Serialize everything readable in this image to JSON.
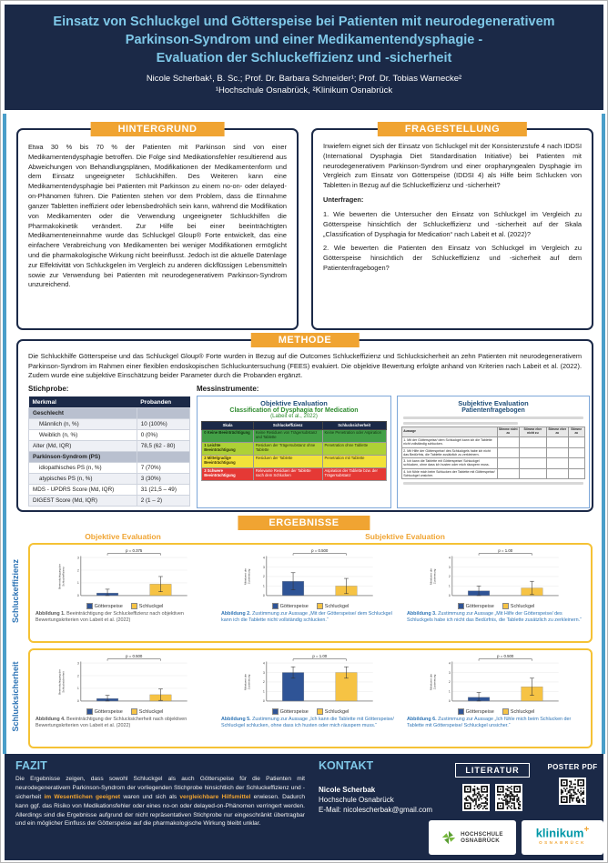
{
  "accent": {
    "navy": "#1b2947",
    "orange": "#f0a432",
    "yellow_border": "#f5c235",
    "light_blue": "#7fc8e8",
    "teal_strip": "#4a9ec9",
    "goetterspeise_blue": "#2f5496",
    "schluckgel_yellow": "#f6c344"
  },
  "header": {
    "title_lines": [
      "Einsatz von Schluckgel und Götterspeise bei Patienten mit neurodegenerativem",
      "Parkinson-Syndrom und einer Medikamentendysphagie -",
      "Evaluation der Schluckeffizienz und -sicherheit"
    ],
    "authors": "Nicole Scherbak¹, B. Sc.; Prof. Dr. Barbara Schneider¹; Prof. Dr. Tobias Warnecke²",
    "affiliations": "¹Hochschule Osnabrück, ²Klinikum Osnabrück"
  },
  "hintergrund": {
    "label": "HINTERGRUND",
    "text": "Etwa 30 % bis 70 % der Patienten mit Parkinson sind von einer Medikamentendysphagie betroffen. Die Folge sind Medikationsfehler resultierend aus Abweichungen von Behandlungsplänen, Modifikationen der Medikamentenform und dem Einsatz ungeeigneter Schluckhilfen. Des Weiteren kann eine Medikamentendysphagie bei Patienten mit Parkinson zu einem no-on- oder delayed-on-Phänomen führen. Die Patienten stehen vor dem Problem, dass die Einnahme ganzer Tabletten ineffizient oder lebensbedrohlich sein kann, während die Modifikation von Medikamenten oder die Verwendung ungeeigneter Schluckhilfen die Pharmakokinetik verändert. Zur Hilfe bei einer beeinträchtigten Medikamenteneinnahme wurde das Schluckgel Gloup® Forte entwickelt, das eine einfachere Verabreichung von Medikamenten bei weniger Modifikationen ermöglicht und die pharmakologische Wirkung nicht beeinflusst. Jedoch ist die aktuelle Datenlage zur Effektivität von Schluckgelen im Vergleich zu anderen dickflüssigen Lebensmitteln sowie zur Verwendung bei Patienten mit neurodegenerativem Parkinson-Syndrom unzureichend."
  },
  "fragestellung": {
    "label": "FRAGESTELLUNG",
    "intro": "Inwiefern eignet sich der Einsatz von Schluckgel mit der Konsistenzstufe 4 nach IDDSI (International Dysphagia Diet Standardisation Initiative) bei Patienten mit neurodegenerativem Parkinson-Syndrom und einer oropharyngealen Dysphagie im Vergleich zum Einsatz von Götterspeise (IDDSI 4) als Hilfe beim Schlucken von Tabletten in Bezug auf die Schluckeffizienz und -sicherheit?",
    "unterfragen_label": "Unterfragen:",
    "frage1": "1. Wie bewerten die Untersucher den Einsatz von Schluckgel im Vergleich zu Götterspeise hinsichtlich der Schluckeffizienz und -sicherheit auf der Skala „Classification of Dysphagia for Medication“ nach Labeit et al. (2022)?",
    "frage2": "2. Wie bewerten die Patienten den Einsatz von Schluckgel im Vergleich zu Götterspeise hinsichtlich der Schluckeffizienz und -sicherheit auf dem Patientenfragebogen?"
  },
  "methode": {
    "label": "METHODE",
    "text": "Die Schluckhilfe Götterspeise und das Schluckgel Gloup® Forte wurden in Bezug auf die Outcomes Schluckeffizienz und Schlucksicherheit an zehn Patienten mit neurodegenerativem Parkinson-Syndrom im Rahmen einer flexiblen endoskopischen Schluckuntersuchung (FEES) evaluiert. Die objektive Bewertung erfolgte anhand von Kriterien nach Labeit et al. (2022). Zudem wurde eine subjektive Einschätzung beider Parameter durch die Probanden ergänzt.",
    "stichprobe_label": "Stichprobe:",
    "messinstrumente_label": "Messinstrumente:",
    "stichprobe_table": {
      "headers": [
        "Merkmal",
        "Probanden"
      ],
      "rows": [
        {
          "merkmal": "Geschlecht",
          "probanden": "",
          "type": "group"
        },
        {
          "merkmal": "Männlich (n, %)",
          "probanden": "10 (100%)",
          "type": "indent"
        },
        {
          "merkmal": "Weiblich (n, %)",
          "probanden": "0 (0%)",
          "type": "indent"
        },
        {
          "merkmal": "Alter (Md, IQR)",
          "probanden": "78,5 (62 - 80)",
          "type": "normal"
        },
        {
          "merkmal": "Parkinson-Syndrom (PS)",
          "probanden": "",
          "type": "group"
        },
        {
          "merkmal": "idiopathisches PS (n, %)",
          "probanden": "7 (70%)",
          "type": "indent"
        },
        {
          "merkmal": "atypisches PS (n, %)",
          "probanden": "3 (30%)",
          "type": "indent"
        },
        {
          "merkmal": "MDS - UPDRS Score (Md, IQR)",
          "probanden": "31 (21,5 – 49)",
          "type": "normal"
        },
        {
          "merkmal": "DIGEST Score (Md, IQR)",
          "probanden": "2 (1 – 2)",
          "type": "normal"
        }
      ]
    },
    "objektive_panel": {
      "title": "Objektive Evaluation",
      "subtitle": "Classification of Dysphagia for Medication",
      "source": "(Labeit et al., 2022)",
      "table": {
        "headers": [
          "Skala",
          "Schluckeffizienz",
          "Schlucksicherheit"
        ],
        "rows": [
          {
            "grade": "0",
            "label": "Keine Beeinträchtigung",
            "eff": "Keine Residuen von Trägersubstanz und Tablette",
            "saf": "Keine Penetration oder Aspiration",
            "color": "#43a047",
            "text_color": "#10310f"
          },
          {
            "grade": "1",
            "label": "Leichte Beeinträchtigung",
            "eff": "Residuen der Trägersubstanz ohne Tablette",
            "saf": "Penetration ohne Tablette",
            "color": "#aed136",
            "text_color": "#2a3208"
          },
          {
            "grade": "2",
            "label": "Mittelgradige Beeinträchtigung",
            "eff": "Residuen der Tablette",
            "saf": "Penetration mit Tablette",
            "color": "#f2e23a",
            "text_color": "#3a3406"
          },
          {
            "grade": "3",
            "label": "Schwere Beeinträchtigung",
            "eff": "Relevante Residuen der Tablette nach dem Schlucken",
            "saf": "Aspiration der Tablette bzw. der Trägersubstanz",
            "color": "#e53935",
            "text_color": "#ffffff"
          }
        ]
      }
    },
    "subjektive_panel": {
      "title": "Subjektive Evaluation",
      "subtitle": "Patientenfragebogen",
      "answer_headers": [
        "Stimme nicht zu",
        "Stimme eher nicht zu",
        "Stimme eher zu",
        "Stimme zu"
      ],
      "items": [
        "Mit der Götterspeise/ dem Schluckgel kann ich die Tablette nicht vollständig schlucken.",
        "Mit Hilfe der Götterspeise/ des Schluckgels habe ich nicht das Bedürfnis, die Tablette zusätzlich zu zerkleinern.",
        "Ich kann die Tablette mit Götterspeise/ Schluckgel schlucken, ohne dass ich husten oder mich räuspern muss.",
        "Ich fühle mich beim Schlucken der Tablette mit Götterspeise/ Schluckgel unsicher."
      ]
    }
  },
  "ergebnisse": {
    "label": "ERGEBNISSE",
    "col_label_objektiv": "Objektive Evaluation",
    "col_label_subjektiv": "Subjektive Evaluation",
    "row_label_effizienz": "Schluckeffizienz",
    "row_label_sicherheit": "Schlucksicherheit",
    "legend": [
      "Götterspeise",
      "Schluckgel"
    ]
  },
  "chart_data": [
    {
      "type": "bar",
      "id": "fig1",
      "p_label": "p = 0.375",
      "ylabel_lines": [
        "Beeinträchtigung der",
        "Schluckeffizienz"
      ],
      "ylim": [
        0,
        3
      ],
      "yticks": [
        0,
        1,
        2,
        3
      ],
      "categories": [
        "Götterspeise",
        "Schluckgel"
      ],
      "values": [
        0.2,
        0.9
      ],
      "errors": [
        0.3,
        0.6
      ],
      "caption_bold": "Abbildung 1.",
      "caption": " Beeinträchtigung der Schluckeffizienz nach objektiven Bewertungskriterien von Labeit et al. (2022)",
      "caption_color": "#555555"
    },
    {
      "type": "bar",
      "id": "fig2",
      "p_label": "p = 0.500",
      "ylabel_lines": [
        "Mittelwert der",
        "Zustimmung"
      ],
      "ylim": [
        0,
        4
      ],
      "yticks": [
        0,
        1,
        2,
        3,
        4
      ],
      "categories": [
        "Götterspeise",
        "Schluckgel"
      ],
      "values": [
        1.5,
        1.0
      ],
      "errors": [
        0.9,
        0.8
      ],
      "caption_bold": "Abbildung 2.",
      "caption": " Zustimmung zur Aussage „Mit der Götterspeise/ dem Schluckgel kann ich die Tablette nicht vollständig schlucken.“",
      "caption_color": "#2e74b5"
    },
    {
      "type": "bar",
      "id": "fig3",
      "p_label": "p = 1.00",
      "ylabel_lines": [
        "Mittelwert der",
        "Zustimmung"
      ],
      "ylim": [
        0,
        4
      ],
      "yticks": [
        0,
        1,
        2,
        3,
        4
      ],
      "categories": [
        "Götterspeise",
        "Schluckgel"
      ],
      "values": [
        0.5,
        0.8
      ],
      "errors": [
        0.5,
        0.7
      ],
      "caption_bold": "Abbildung 3.",
      "caption": " Zustimmung zur Aussage „Mit Hilfe der Götterspeise/ des Schluckgels habe ich nicht das Bedürfnis, die Tablette zusätzlich zu zerkleinern.“",
      "caption_color": "#2e74b5"
    },
    {
      "type": "bar",
      "id": "fig4",
      "p_label": "p = 0.500",
      "ylabel_lines": [
        "Beeinträchtigung der",
        "Schlucksicherheit"
      ],
      "ylim": [
        0,
        3
      ],
      "yticks": [
        0,
        1,
        2,
        3
      ],
      "categories": [
        "Götterspeise",
        "Schluckgel"
      ],
      "values": [
        0.2,
        0.5
      ],
      "errors": [
        0.25,
        0.45
      ],
      "caption_bold": "Abbildung 4.",
      "caption": " Beeinträchtigung der Schlucksicherheit nach objektiven Bewertungskriterien von Labeit et al. (2022)",
      "caption_color": "#555555"
    },
    {
      "type": "bar",
      "id": "fig5",
      "p_label": "p = 1.00",
      "ylabel_lines": [
        "Mittelwert der",
        "Zustimmung"
      ],
      "ylim": [
        0,
        4
      ],
      "yticks": [
        0,
        1,
        2,
        3,
        4
      ],
      "categories": [
        "Götterspeise",
        "Schluckgel"
      ],
      "values": [
        3.0,
        3.0
      ],
      "errors": [
        0.6,
        0.6
      ],
      "caption_bold": "Abbildung 5.",
      "caption": " Zustimmung zur Aussage „Ich kann die Tablette mit Götterspeise/ Schluckgel schlucken, ohne dass ich husten oder mich räuspern muss.“",
      "caption_color": "#2e74b5"
    },
    {
      "type": "bar",
      "id": "fig6",
      "p_label": "p = 0.500",
      "ylabel_lines": [
        "Mittelwert der",
        "Zustimmung"
      ],
      "ylim": [
        0,
        4
      ],
      "yticks": [
        0,
        1,
        2,
        3,
        4
      ],
      "categories": [
        "Götterspeise",
        "Schluckgel"
      ],
      "values": [
        0.4,
        1.5
      ],
      "errors": [
        0.5,
        0.9
      ],
      "caption_bold": "Abbildung 6.",
      "caption": " Zustimmung zur Aussage „Ich fühle mich beim Schlucken der Tablette mit Götterspeise/ Schluckgel unsicher.“",
      "caption_color": "#2e74b5"
    }
  ],
  "fazit": {
    "label": "FAZIT",
    "p1": "Die Ergebnisse zeigen, dass sowohl Schluckgel als auch Götterspeise für die Patienten mit neurodegenerativem Parkinson-Syndrom der vorliegenden Stichprobe hinsichtlich der Schluckeffizienz und -sicherheit ",
    "hl1": "im Wesentlichen geeignet",
    "p2": " waren und sich als ",
    "hl2": "vergleichbare Hilfsmittel",
    "p3": " erwiesen. Dadurch kann ggf. das Risiko von Medikationsfehler oder eines no-on oder delayed-on-Phänomen verringert werden. Allerdings sind die Ergebnisse aufgrund der nicht repräsentativen Stichprobe nur eingeschränkt übertragbar und ein möglicher Einfluss der Götterspeise auf die pharmakologische Wirkung bleibt unklar."
  },
  "kontakt": {
    "label": "KONTAKT",
    "name": "Nicole Scherbak",
    "org": "Hochschule Osnabrück",
    "email": "E-Mail: nicolescherbak@gmail.com"
  },
  "literatur": {
    "label": "LITERATUR"
  },
  "poster_pdf": {
    "label": "POSTER PDF"
  },
  "logos": {
    "hochschule_line1": "HOCHSCHULE",
    "hochschule_line2": "OSNABRÜCK",
    "klinikum": "klinikum",
    "klinikum_plus": "+",
    "klinikum_sub": "OSNABRÜCK"
  }
}
